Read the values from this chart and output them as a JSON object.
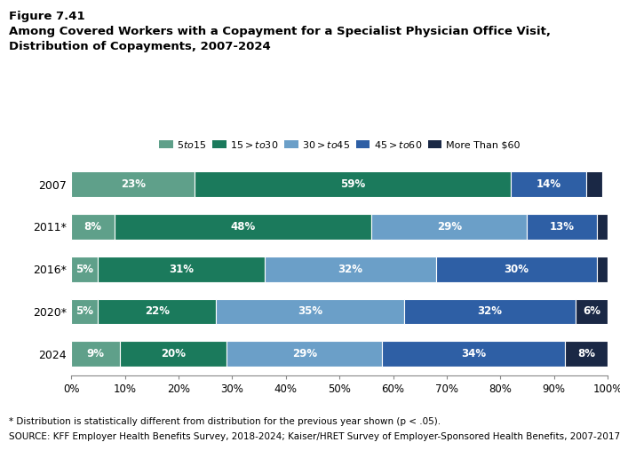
{
  "title_line1": "Figure 7.41",
  "title_line2": "Among Covered Workers with a Copayment for a Specialist Physician Office Visit,",
  "title_line3": "Distribution of Copayments, 2007-2024",
  "years": [
    "2007",
    "2011*",
    "2016*",
    "2020*",
    "2024"
  ],
  "categories": [
    "$5 to $15",
    "$15> to $30",
    "$30> to $45",
    "$45> to $60",
    "More Than $60"
  ],
  "colors": [
    "#5fa08a",
    "#1b7a5c",
    "#6b9fc8",
    "#2e5fa5",
    "#1a2845"
  ],
  "data": [
    [
      23,
      59,
      0,
      14,
      3
    ],
    [
      8,
      48,
      29,
      13,
      2
    ],
    [
      5,
      31,
      32,
      30,
      2
    ],
    [
      5,
      22,
      35,
      32,
      6
    ],
    [
      9,
      20,
      29,
      34,
      8
    ]
  ],
  "label_threshold": 4,
  "footnote1": "* Distribution is statistically different from distribution for the previous year shown (p < .05).",
  "footnote2": "SOURCE: KFF Employer Health Benefits Survey, 2018-2024; Kaiser/HRET Survey of Employer-Sponsored Health Benefits, 2007-2017",
  "bar_height": 0.6,
  "figsize": [
    6.98,
    5.25
  ],
  "dpi": 100
}
